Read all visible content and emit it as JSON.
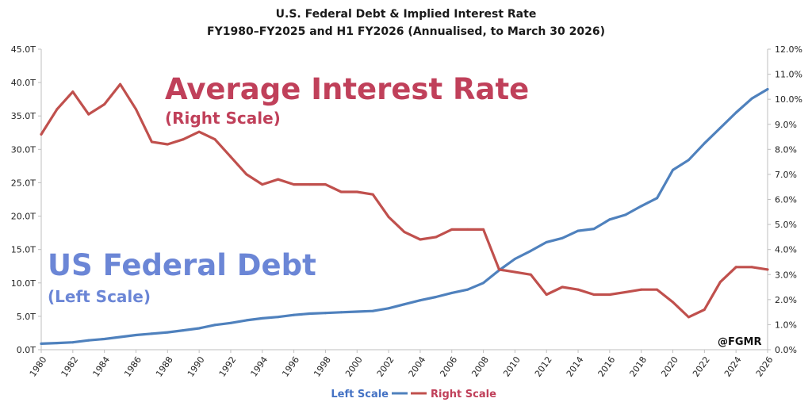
{
  "chart_data": {
    "type": "line",
    "title": "U.S. Federal Debt & Implied Interest Rate",
    "subtitle": "FY1980–FY2025 and H1 FY2026 (Annualised, to March 30 2026)",
    "x": [
      1980,
      1981,
      1982,
      1983,
      1984,
      1985,
      1986,
      1987,
      1988,
      1989,
      1990,
      1991,
      1992,
      1993,
      1994,
      1995,
      1996,
      1997,
      1998,
      1999,
      2000,
      2001,
      2002,
      2003,
      2004,
      2005,
      2006,
      2007,
      2008,
      2009,
      2010,
      2011,
      2012,
      2013,
      2014,
      2015,
      2016,
      2017,
      2018,
      2019,
      2020,
      2021,
      2022,
      2023,
      2024,
      2025,
      2026
    ],
    "x_tick_labels": [
      "1980",
      "1982",
      "1984",
      "1986",
      "1988",
      "1990",
      "1992",
      "1994",
      "1996",
      "1998",
      "2000",
      "2002",
      "2004",
      "2006",
      "2008",
      "2010",
      "2012",
      "2014",
      "2016",
      "2018",
      "2020",
      "2022",
      "2024",
      "2026"
    ],
    "xlim": [
      1980,
      2026
    ],
    "left_axis": {
      "ylim": [
        0,
        45
      ],
      "tick_labels": [
        "0.0T",
        "5.0T",
        "10.0T",
        "15.0T",
        "20.0T",
        "25.0T",
        "30.0T",
        "35.0T",
        "40.0T",
        "45.0T"
      ]
    },
    "right_axis": {
      "ylim": [
        0,
        12
      ],
      "tick_labels": [
        "0.0%",
        "1.0%",
        "2.0%",
        "3.0%",
        "4.0%",
        "5.0%",
        "6.0%",
        "7.0%",
        "8.0%",
        "9.0%",
        "10.0%",
        "11.0%",
        "12.0%"
      ]
    },
    "series": [
      {
        "name": "Left Scale",
        "axis": "left",
        "color": "#4f81bd",
        "values": [
          0.9,
          1.0,
          1.1,
          1.4,
          1.6,
          1.9,
          2.2,
          2.4,
          2.6,
          2.9,
          3.2,
          3.7,
          4.0,
          4.4,
          4.7,
          4.9,
          5.2,
          5.4,
          5.5,
          5.6,
          5.7,
          5.8,
          6.2,
          6.8,
          7.4,
          7.9,
          8.5,
          9.0,
          10.0,
          11.9,
          13.6,
          14.8,
          16.1,
          16.7,
          17.8,
          18.1,
          19.5,
          20.2,
          21.5,
          22.7,
          26.9,
          28.4,
          30.9,
          33.2,
          35.5,
          37.6,
          39.0
        ]
      },
      {
        "name": "Right Scale",
        "axis": "right",
        "color": "#c0504d",
        "values": [
          8.6,
          9.6,
          10.3,
          9.4,
          9.8,
          10.6,
          9.6,
          8.3,
          8.2,
          8.4,
          8.7,
          8.4,
          7.7,
          7.0,
          6.6,
          6.8,
          6.6,
          6.6,
          6.6,
          6.3,
          6.3,
          6.2,
          5.3,
          4.7,
          4.4,
          4.5,
          4.8,
          4.8,
          4.8,
          3.2,
          3.1,
          3.0,
          2.2,
          2.5,
          2.4,
          2.2,
          2.2,
          2.3,
          2.4,
          2.4,
          1.9,
          1.3,
          1.6,
          2.7,
          3.3,
          3.3,
          3.2
        ]
      }
    ],
    "annotations": [
      {
        "text": "Average Interest Rate",
        "color": "#c0405a"
      },
      {
        "text": "(Right Scale)",
        "color": "#c0405a"
      },
      {
        "text": "US Federal Debt",
        "color": "#6b86d6"
      },
      {
        "text": "(Left Scale)",
        "color": "#6b86d6"
      }
    ],
    "legend_position": "bottom",
    "grid": false,
    "watermark": "@FGMR"
  }
}
